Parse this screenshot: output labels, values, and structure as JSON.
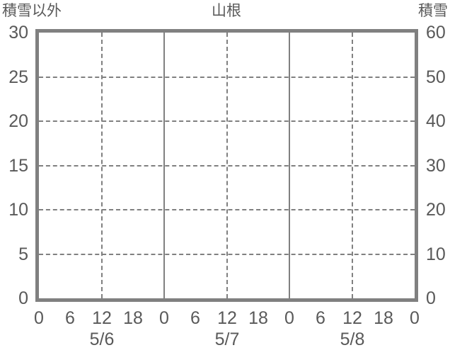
{
  "chart_data": {
    "type": "line",
    "title": "山根",
    "series": [],
    "left_axis": {
      "title": "積雪以外",
      "range": [
        0,
        30
      ],
      "ticks": [
        0,
        5,
        10,
        15,
        20,
        25,
        30
      ]
    },
    "right_axis": {
      "title": "積雪",
      "range": [
        0,
        60
      ],
      "ticks": [
        0,
        10,
        20,
        30,
        40,
        50,
        60
      ]
    },
    "x_axis": {
      "range_hours": [
        0,
        72
      ],
      "hour_ticks": [
        {
          "hour": 0,
          "label": "0"
        },
        {
          "hour": 6,
          "label": "6"
        },
        {
          "hour": 12,
          "label": "12"
        },
        {
          "hour": 18,
          "label": "18"
        },
        {
          "hour": 24,
          "label": "0"
        },
        {
          "hour": 30,
          "label": "6"
        },
        {
          "hour": 36,
          "label": "12"
        },
        {
          "hour": 42,
          "label": "18"
        },
        {
          "hour": 48,
          "label": "0"
        },
        {
          "hour": 54,
          "label": "6"
        },
        {
          "hour": 60,
          "label": "12"
        },
        {
          "hour": 66,
          "label": "18"
        },
        {
          "hour": 72,
          "label": "0"
        }
      ],
      "day_labels": [
        {
          "hour": 12,
          "label": "5/6"
        },
        {
          "hour": 36,
          "label": "5/7"
        },
        {
          "hour": 60,
          "label": "5/8"
        }
      ]
    },
    "gridlines": {
      "horizontal_dashed_at_left_values": [
        5,
        10,
        15,
        20,
        25
      ],
      "vertical_dashed_at_hours": [
        12,
        36,
        60
      ],
      "vertical_solid_at_hours": [
        24,
        48
      ]
    },
    "colors": {
      "plot_border": "#808080",
      "gridline": "#808080",
      "text": "#595959",
      "background": "#ffffff"
    }
  }
}
